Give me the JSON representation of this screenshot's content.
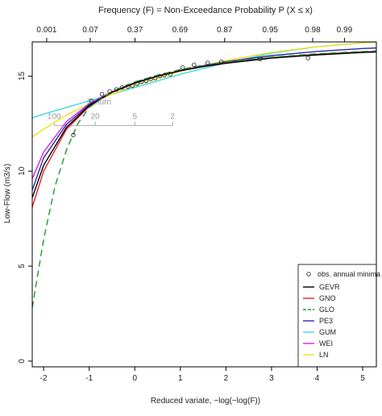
{
  "chart_data": {
    "type": "line",
    "title": "Frequency (F) = Non-Exceedance Probability P (X ≤ x)",
    "xlabel": "Reduced variate, −log(−log(F))",
    "ylabel": "Low-Flow (m3/s)",
    "xlim": [
      -2.25,
      5.3
    ],
    "ylim": [
      -0.3,
      16.8
    ],
    "x_ticks": [
      -2,
      -1,
      0,
      1,
      2,
      3,
      4,
      5
    ],
    "y_ticks": [
      0,
      5,
      10,
      15
    ],
    "x_tick_labels": [
      "-2",
      "-1",
      "0",
      "1",
      "2",
      "3",
      "4",
      "5"
    ],
    "y_tick_labels": [
      "0",
      "5",
      "10",
      "15"
    ],
    "top_axis": {
      "ticks": [
        0.001,
        0.07,
        0.37,
        0.69,
        0.87,
        0.95,
        0.98,
        0.99
      ],
      "labels": [
        "0.001",
        "0.07",
        "0.37",
        "0.69",
        "0.87",
        "0.95",
        "0.98",
        "0.99"
      ]
    },
    "return_period_axis": {
      "label": "Return",
      "ticks": [
        100,
        20,
        5,
        2
      ],
      "labels": [
        "100",
        "20",
        "5",
        "2"
      ],
      "x": [
        -1.77,
        -0.87,
        0.0,
        0.83
      ],
      "y": 12.4
    },
    "legend_position": "bottom-right",
    "grid": false,
    "observations": {
      "name": "obs. annual minima",
      "x": [
        -1.35,
        -0.95,
        -0.72,
        -0.55,
        -0.4,
        -0.28,
        -0.15,
        -0.05,
        0.05,
        0.15,
        0.25,
        0.35,
        0.45,
        0.55,
        0.65,
        0.78,
        1.05,
        1.3,
        1.6,
        1.9,
        2.75,
        3.8
      ],
      "y": [
        11.9,
        13.7,
        14.05,
        14.2,
        14.3,
        14.4,
        14.45,
        14.5,
        14.6,
        14.7,
        14.75,
        14.85,
        14.9,
        15.0,
        15.05,
        15.1,
        15.45,
        15.6,
        15.7,
        15.75,
        15.9,
        15.95
      ]
    },
    "series": [
      {
        "name": "GEVR",
        "color": "#000000",
        "dash": "",
        "x": [
          -2.25,
          -2,
          -1.5,
          -1,
          -0.5,
          0,
          0.5,
          1,
          1.5,
          2,
          3,
          4,
          5,
          5.3
        ],
        "y": [
          8.6,
          10.3,
          12.3,
          13.45,
          14.15,
          14.65,
          15.0,
          15.28,
          15.5,
          15.68,
          15.95,
          16.12,
          16.25,
          16.28
        ]
      },
      {
        "name": "GNO",
        "color": "#e8202a",
        "dash": "",
        "x": [
          -2.25,
          -2,
          -1.5,
          -1,
          -0.5,
          0,
          0.5,
          1,
          1.5,
          2,
          3,
          4,
          5,
          5.3
        ],
        "y": [
          8.1,
          10.0,
          12.2,
          13.4,
          14.15,
          14.65,
          15.0,
          15.3,
          15.52,
          15.7,
          15.98,
          16.15,
          16.28,
          16.3
        ]
      },
      {
        "name": "GLO",
        "color": "#1a9a2a",
        "dash": "8,5",
        "x": [
          -2.25,
          -2,
          -1.75,
          -1.5,
          -1.25,
          -1,
          -0.5,
          0,
          0.5,
          1,
          1.5,
          2,
          3,
          4,
          5,
          5.3
        ],
        "y": [
          2.8,
          6.4,
          9.2,
          11.1,
          12.5,
          13.35,
          14.2,
          14.7,
          15.05,
          15.35,
          15.58,
          15.75,
          16.0,
          16.18,
          16.3,
          16.33
        ]
      },
      {
        "name": "PE3",
        "color": "#2a2ab0",
        "dash": "",
        "x": [
          -2.25,
          -2,
          -1.5,
          -1,
          -0.5,
          0,
          0.5,
          1,
          1.5,
          2,
          3,
          4,
          5,
          5.3
        ],
        "y": [
          9.0,
          10.7,
          12.45,
          13.5,
          14.15,
          14.62,
          15.0,
          15.3,
          15.55,
          15.76,
          16.08,
          16.3,
          16.45,
          16.48
        ]
      },
      {
        "name": "GUM",
        "color": "#40d8e8",
        "dash": "",
        "x": [
          -2.25,
          -2,
          -1.5,
          -1,
          -0.5,
          0,
          0.5,
          1,
          1.5,
          2,
          3,
          4,
          5,
          5.3
        ],
        "y": [
          12.8,
          13.0,
          13.35,
          13.7,
          14.05,
          14.4,
          14.75,
          15.1,
          15.4,
          15.7,
          16.2,
          16.55,
          16.75,
          16.8
        ]
      },
      {
        "name": "WEI",
        "color": "#e020e0",
        "dash": "",
        "x": [
          -2.25,
          -2,
          -1.5,
          -1,
          -0.5,
          0,
          0.5,
          1,
          1.5,
          2,
          3,
          4,
          5,
          5.3
        ],
        "y": [
          9.6,
          11.0,
          12.6,
          13.55,
          14.18,
          14.65,
          15.0,
          15.28,
          15.5,
          15.68,
          15.95,
          16.12,
          16.25,
          16.27
        ]
      },
      {
        "name": "LN",
        "color": "#f0e020",
        "dash": "",
        "x": [
          -2.25,
          -2,
          -1.5,
          -1,
          -0.5,
          0,
          0.5,
          1,
          1.5,
          2,
          3,
          4,
          5,
          5.3
        ],
        "y": [
          11.8,
          12.2,
          12.95,
          13.55,
          14.05,
          14.5,
          14.9,
          15.25,
          15.55,
          15.82,
          16.25,
          16.55,
          16.75,
          16.8
        ]
      }
    ]
  }
}
